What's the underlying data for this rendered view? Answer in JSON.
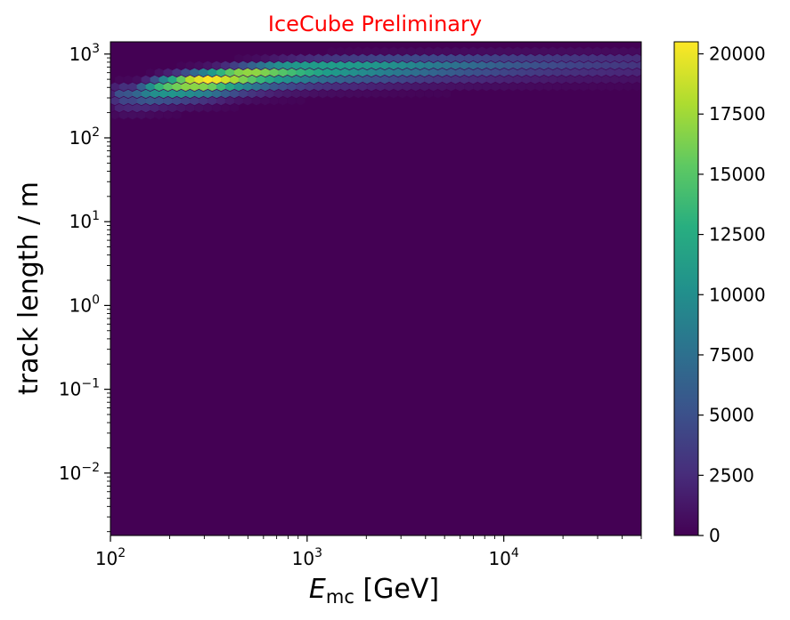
{
  "chart_data": {
    "type": "heatmap",
    "title": "IceCube Preliminary",
    "title_color": "#ff0000",
    "xlabel_main": "E",
    "xlabel_sub": "mc",
    "xlabel_unit": " [GeV]",
    "ylabel": "track length / m",
    "x_scale": "log",
    "y_scale": "log",
    "xlim": [
      100,
      50000
    ],
    "ylim": [
      0.0018,
      1400
    ],
    "x_ticks": [
      {
        "value": 100,
        "base": "10",
        "exp": "2"
      },
      {
        "value": 1000,
        "base": "10",
        "exp": "3"
      },
      {
        "value": 10000,
        "base": "10",
        "exp": "4"
      }
    ],
    "y_ticks": [
      {
        "value": 0.01,
        "base": "10",
        "exp": "−2"
      },
      {
        "value": 0.1,
        "base": "10",
        "exp": "−1"
      },
      {
        "value": 1,
        "base": "10",
        "exp": "0"
      },
      {
        "value": 10,
        "base": "10",
        "exp": "1"
      },
      {
        "value": 100,
        "base": "10",
        "exp": "2"
      },
      {
        "value": 1000,
        "base": "10",
        "exp": "3"
      }
    ],
    "colorbar": {
      "min": 0,
      "max": 20500,
      "ticks": [
        0,
        2500,
        5000,
        7500,
        10000,
        12500,
        15000,
        17500,
        20000
      ],
      "tick_labels": [
        "0",
        "2500",
        "5000",
        "7500",
        "10000",
        "12500",
        "15000",
        "17500",
        "20000"
      ],
      "colormap": "viridis"
    },
    "background_color": "#440154",
    "density_peak": {
      "x": 320,
      "y": 480,
      "count": 20500
    },
    "density_ridge": [
      {
        "x": 130,
        "y": 340,
        "count": 5500
      },
      {
        "x": 180,
        "y": 420,
        "count": 14000
      },
      {
        "x": 250,
        "y": 470,
        "count": 19000
      },
      {
        "x": 320,
        "y": 500,
        "count": 20500
      },
      {
        "x": 450,
        "y": 560,
        "count": 18500
      },
      {
        "x": 700,
        "y": 630,
        "count": 15500
      },
      {
        "x": 1200,
        "y": 680,
        "count": 12500
      },
      {
        "x": 2500,
        "y": 720,
        "count": 10500
      },
      {
        "x": 5000,
        "y": 750,
        "count": 8000
      },
      {
        "x": 10000,
        "y": 770,
        "count": 6000
      },
      {
        "x": 20000,
        "y": 790,
        "count": 4500
      },
      {
        "x": 50000,
        "y": 800,
        "count": 3200
      }
    ],
    "grid": false
  }
}
